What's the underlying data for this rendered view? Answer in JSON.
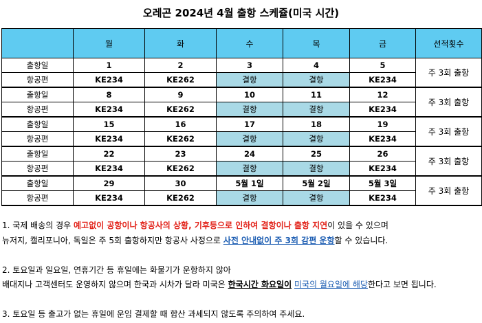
{
  "title": "오레곤 2024년 4월 출항 스케쥴(미국 시간)",
  "headers": [
    "",
    "월",
    "화",
    "수",
    "목",
    "금",
    "선적횟수"
  ],
  "weeks": [
    {
      "label1": "출항일",
      "days": [
        "1",
        "2",
        "3",
        "4",
        "5"
      ],
      "label2": "항공편",
      "flights": [
        "KE234",
        "KE262",
        "결항",
        "결항",
        "KE234"
      ],
      "note": "주 3회 출항"
    },
    {
      "label1": "출항일",
      "days": [
        "8",
        "9",
        "10",
        "11",
        "12"
      ],
      "label2": "항공편",
      "flights": [
        "KE234",
        "KE262",
        "결항",
        "결항",
        "KE234"
      ],
      "note": "주 3회 출항"
    },
    {
      "label1": "출항일",
      "days": [
        "15",
        "16",
        "17",
        "18",
        "19"
      ],
      "label2": "항공편",
      "flights": [
        "KE234",
        "KE262",
        "결항",
        "결항",
        "KE234"
      ],
      "note": "주 3회 출항"
    },
    {
      "label1": "출항일",
      "days": [
        "22",
        "23",
        "24",
        "25",
        "26"
      ],
      "label2": "항공편",
      "flights": [
        "KE234",
        "KE262",
        "결항",
        "결항",
        "KE234"
      ],
      "note": "주 3회 출항"
    },
    {
      "label1": "출항일",
      "days": [
        "29",
        "30",
        "5월 1일",
        "5월 2일",
        "5월 3일"
      ],
      "label2": "항공편",
      "flights": [
        "KE234",
        "KE262",
        "결항",
        "결항",
        "KE234"
      ],
      "note": "주 3회 출항"
    }
  ],
  "notes": {
    "n1_a": "1. 국제 배송의 경우 ",
    "n1_b": "예고없이 공항이나 항공사의 상황, 기후등으로 인하여 결항이나 출항 지연",
    "n1_c": "이 있을 수 있으며",
    "n1_d": "뉴저지, 캘리포니아, 독일은 주 5회 출항하지만 항공사 사정으로 ",
    "n1_e": "사전 안내없이 주 3회 감편 운항",
    "n1_f": "할 수 있습니다.",
    "n2_a": "2. 토요일과 일요일, 연휴기간 등 휴일에는 화물기가 운항하지 않아",
    "n2_b": "배대지나 고객센터도 운영하지 않으며 한국과 시차가 달라 미국은 ",
    "n2_c": "한국시간 화요일이",
    "n2_d": " ",
    "n2_e": "미국의 월요일에 해당",
    "n2_f": "한다고 보면 됩니다.",
    "n3": "3. 토요일 등 출고가 없는 휴일에 운임 결제할 때 합산 과세되지 않도록 주의하여 주세요."
  },
  "colors": {
    "header_bg": "#5fcbf1",
    "cancel_bg": "#a9d9e6",
    "red": "#e2231a",
    "blue": "#1f5fb3"
  }
}
